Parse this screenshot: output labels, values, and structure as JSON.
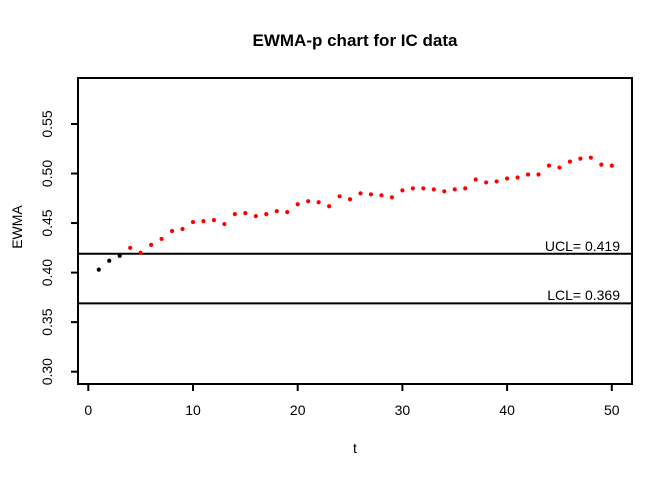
{
  "window": {
    "background": "#ffffff"
  },
  "colors": {
    "axis": "#000000",
    "in_control_point": "#000000",
    "out_of_control_point": "#ff0000",
    "control_line": "#000000"
  },
  "chart_data": {
    "type": "scatter",
    "title": "EWMA-p chart for IC data",
    "xlabel": "t",
    "ylabel": "EWMA",
    "x_ticks": [
      0,
      10,
      20,
      30,
      40,
      50
    ],
    "y_ticks": [
      0.3,
      0.35,
      0.4,
      0.45,
      0.5,
      0.55
    ],
    "xlim": [
      -1,
      52
    ],
    "ylim": [
      0.288,
      0.596
    ],
    "grid": false,
    "ucl": {
      "label": "UCL= 0.419",
      "value": 0.419
    },
    "lcl": {
      "label": "LCL= 0.369",
      "value": 0.369
    },
    "series": [
      {
        "name": "initial-points",
        "color": "#000000",
        "t": [
          1,
          2,
          3
        ],
        "ewma": [
          0.403,
          0.412,
          0.417
        ]
      },
      {
        "name": "signal-points",
        "color": "#ff0000",
        "t": [
          4,
          5,
          6,
          7,
          8,
          9,
          10,
          11,
          12,
          13,
          14,
          15,
          16,
          17,
          18,
          19,
          20,
          21,
          22,
          23,
          24,
          25,
          26,
          27,
          28,
          29,
          30,
          31,
          32,
          33,
          34,
          35,
          36,
          37,
          38,
          39,
          40,
          41,
          42,
          43,
          44,
          45,
          46,
          47,
          48,
          49,
          50
        ],
        "ewma": [
          0.425,
          0.42,
          0.428,
          0.434,
          0.442,
          0.444,
          0.451,
          0.452,
          0.453,
          0.449,
          0.459,
          0.46,
          0.457,
          0.459,
          0.462,
          0.461,
          0.469,
          0.472,
          0.471,
          0.467,
          0.477,
          0.474,
          0.48,
          0.479,
          0.478,
          0.476,
          0.483,
          0.485,
          0.485,
          0.484,
          0.482,
          0.484,
          0.485,
          0.494,
          0.491,
          0.492,
          0.495,
          0.496,
          0.499,
          0.499,
          0.508,
          0.506,
          0.512,
          0.515,
          0.516,
          0.509,
          0.508
        ]
      }
    ]
  }
}
